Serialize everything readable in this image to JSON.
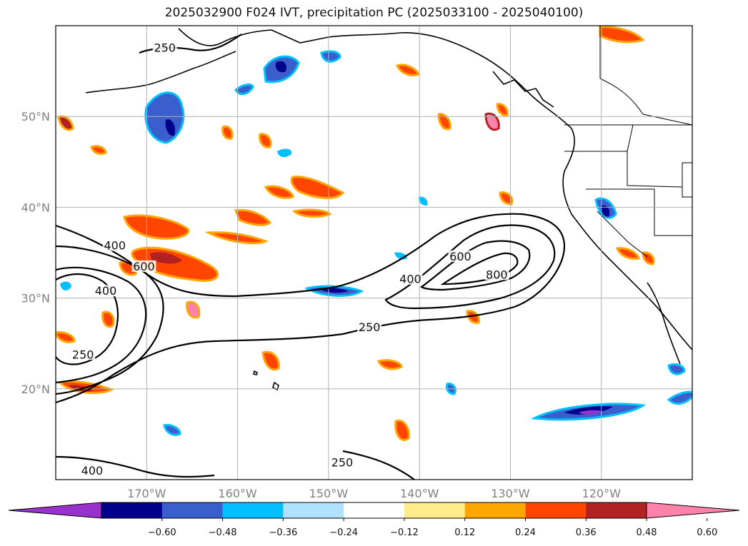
{
  "title": "2025032900 F024 IVT, precipitation PC (2025033100 - 2025040100)",
  "map": {
    "lon_range": [
      -180,
      -110
    ],
    "lat_range": [
      10,
      60
    ],
    "lat_gridlines": [
      {
        "lat": 50,
        "label": "50°N"
      },
      {
        "lat": 40,
        "label": "40°N"
      },
      {
        "lat": 30,
        "label": "30°N"
      },
      {
        "lat": 20,
        "label": "20°N"
      }
    ],
    "lon_gridlines": [
      {
        "lon": -170,
        "label": "170°W"
      },
      {
        "lon": -160,
        "label": "160°W"
      },
      {
        "lon": -150,
        "label": "150°W"
      },
      {
        "lon": -140,
        "label": "140°W"
      },
      {
        "lon": -130,
        "label": "130°W"
      },
      {
        "lon": -120,
        "label": "120°W"
      }
    ],
    "ivt_contour_labels": [
      {
        "text": "250",
        "lon": -168,
        "lat": 57.3
      },
      {
        "text": "400",
        "lon": -173.5,
        "lat": 35.5
      },
      {
        "text": "600",
        "lon": -170.3,
        "lat": 33.2
      },
      {
        "text": "400",
        "lon": -174.5,
        "lat": 30.5
      },
      {
        "text": "250",
        "lon": -177,
        "lat": 23.5
      },
      {
        "text": "400",
        "lon": -141,
        "lat": 31.8
      },
      {
        "text": "600",
        "lon": -135.5,
        "lat": 34.3
      },
      {
        "text": "800",
        "lon": -131.5,
        "lat": 32.3
      },
      {
        "text": "250",
        "lon": -145.5,
        "lat": 26.5
      },
      {
        "text": "400",
        "lon": -176,
        "lat": 10.7
      },
      {
        "text": "250",
        "lon": -148.5,
        "lat": 11.6
      }
    ]
  },
  "colorbar": {
    "colors": [
      "#9932cc",
      "#00008b",
      "#3a5fcd",
      "#00bfff",
      "#b0e2ff",
      "#ffffff",
      "#ffec8b",
      "#ffa500",
      "#ff4500",
      "#b22222",
      "#ff82ab"
    ],
    "tick_labels": [
      "−0.60",
      "−0.48",
      "−0.36",
      "−0.24",
      "−0.12",
      "0.12",
      "0.24",
      "0.36",
      "0.48",
      "0.60"
    ]
  }
}
